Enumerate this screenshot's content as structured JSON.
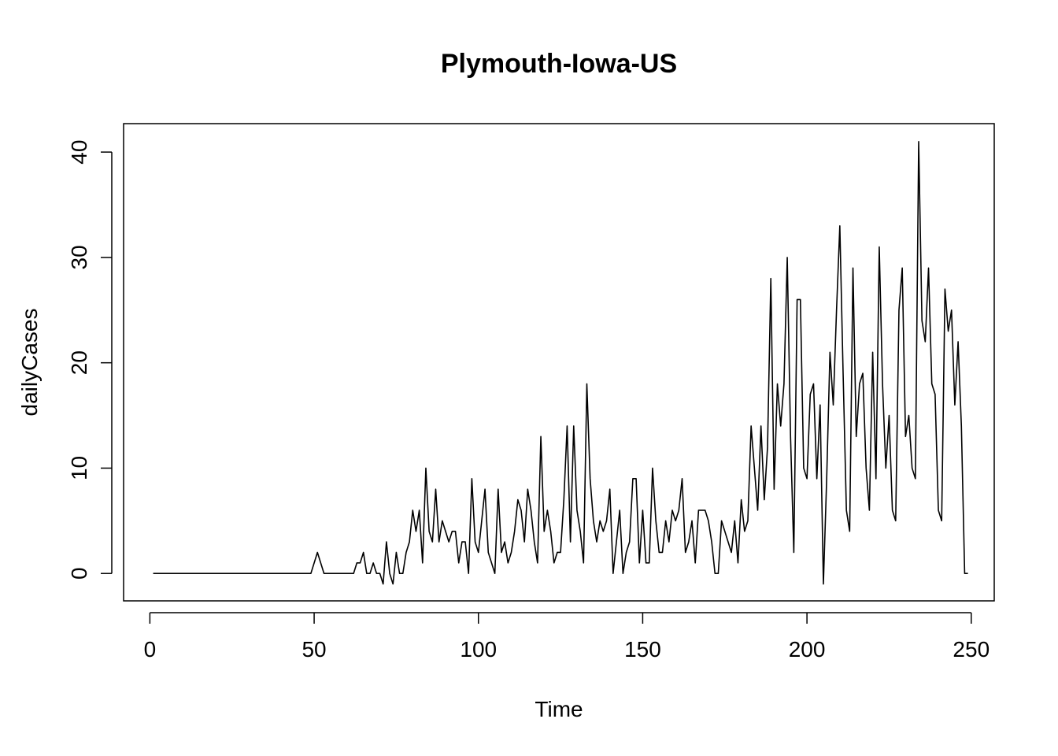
{
  "chart_data": {
    "type": "line",
    "title": "Plymouth-Iowa-US",
    "xlabel": "Time",
    "ylabel": "dailyCases",
    "xlim": [
      -8,
      257
    ],
    "ylim": [
      -2.6,
      42.7
    ],
    "xticks": [
      0,
      50,
      100,
      150,
      200,
      250
    ],
    "yticks": [
      0,
      10,
      20,
      30,
      40
    ],
    "grid": false,
    "legend": "none",
    "line_color": "#000000",
    "series": [
      {
        "x_start": 1,
        "values": [
          0,
          0,
          0,
          0,
          0,
          0,
          0,
          0,
          0,
          0,
          0,
          0,
          0,
          0,
          0,
          0,
          0,
          0,
          0,
          0,
          0,
          0,
          0,
          0,
          0,
          0,
          0,
          0,
          0,
          0,
          0,
          0,
          0,
          0,
          0,
          0,
          0,
          0,
          0,
          0,
          0,
          0,
          0,
          0,
          0,
          0,
          0,
          0,
          0,
          1,
          2,
          1,
          0,
          0,
          0,
          0,
          0,
          0,
          0,
          0,
          0,
          0,
          1,
          1,
          2,
          0,
          0,
          1,
          0,
          0,
          -1,
          3,
          0,
          -1,
          2,
          0,
          0,
          2,
          3,
          6,
          4,
          6,
          1,
          10,
          4,
          3,
          8,
          3,
          5,
          4,
          3,
          4,
          4,
          1,
          3,
          3,
          0,
          9,
          3,
          2,
          5,
          8,
          2,
          1,
          0,
          8,
          2,
          3,
          1,
          2,
          4,
          7,
          6,
          3,
          8,
          6,
          3,
          1,
          13,
          4,
          6,
          4,
          1,
          2,
          2,
          7,
          14,
          3,
          14,
          6,
          4,
          1,
          18,
          9,
          5,
          3,
          5,
          4,
          5,
          8,
          0,
          3,
          6,
          0,
          2,
          3,
          9,
          9,
          1,
          6,
          1,
          1,
          10,
          5,
          2,
          2,
          5,
          3,
          6,
          5,
          6,
          9,
          2,
          3,
          5,
          1,
          6,
          6,
          6,
          5,
          3,
          0,
          0,
          5,
          4,
          3,
          2,
          5,
          1,
          7,
          4,
          5,
          14,
          10,
          6,
          14,
          7,
          12,
          28,
          8,
          18,
          14,
          18,
          30,
          13,
          2,
          26,
          26,
          10,
          9,
          17,
          18,
          9,
          16,
          -1,
          9,
          21,
          16,
          25,
          33,
          19,
          6,
          4,
          29,
          13,
          18,
          19,
          10,
          6,
          21,
          9,
          31,
          18,
          10,
          15,
          6,
          5,
          25,
          29,
          13,
          15,
          10,
          9,
          41,
          24,
          22,
          29,
          18,
          17,
          6,
          5,
          27,
          23,
          25,
          16,
          22,
          14,
          0,
          0
        ]
      }
    ]
  }
}
